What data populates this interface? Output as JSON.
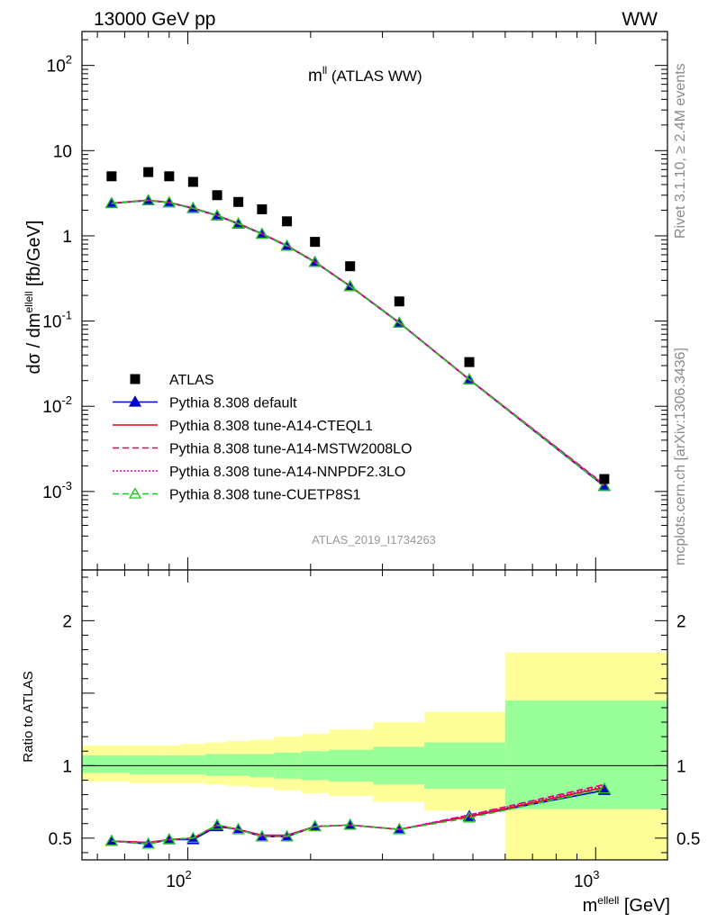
{
  "header": {
    "energy_label": "13000 GeV pp",
    "process_label": "WW",
    "observable_label_main": "m",
    "observable_label_sup": "ll",
    "observable_label_suffix": " (ATLAS WW)",
    "analysis_id": "ATLAS_2019_I1734263",
    "side_rivet": "Rivet 3.1.10, ≥ 2.4M events",
    "side_mcplots": "mcplots.cern.ch [arXiv:1306.3436]"
  },
  "chart_data": [
    {
      "type": "scatter",
      "panel": "main",
      "ylabel_main": "dσ / dm",
      "ylabel_sup": "ellell",
      "ylabel_unit": " [fb/GeV]",
      "xscale": "log",
      "yscale": "log",
      "xlim": [
        55,
        1500
      ],
      "ylim": [
        0.00012,
        250
      ],
      "x_tick_labels": [
        "10^2",
        "10^3"
      ],
      "y_tick_labels": [
        "10^2",
        "10",
        "1",
        "10^-1",
        "10^-2",
        "10^-3"
      ],
      "legend_position": "bottom-left",
      "x": [
        65,
        80,
        90,
        103,
        118,
        133,
        152,
        175,
        205,
        250,
        330,
        490,
        1050
      ],
      "series": [
        {
          "name": "ATLAS",
          "color": "#000000",
          "marker": "square",
          "values": [
            5.0,
            5.6,
            5.0,
            4.3,
            3.0,
            2.5,
            2.05,
            1.48,
            0.85,
            0.44,
            0.17,
            0.033,
            0.0014
          ]
        },
        {
          "name": "Pythia 8.308 default",
          "color": "#0000cc",
          "marker": "triangle-filled",
          "line": "solid",
          "values": [
            2.4,
            2.6,
            2.45,
            2.1,
            1.72,
            1.38,
            1.05,
            0.76,
            0.49,
            0.255,
            0.095,
            0.0205,
            0.00115
          ]
        },
        {
          "name": "Pythia 8.308 tune-A14-CTEQL1",
          "color": "#e8001c",
          "marker": "none",
          "line": "solid",
          "values": [
            2.42,
            2.62,
            2.47,
            2.12,
            1.74,
            1.4,
            1.06,
            0.77,
            0.495,
            0.258,
            0.096,
            0.0207,
            0.00118
          ]
        },
        {
          "name": "Pythia 8.308 tune-A14-MSTW2008LO",
          "color": "#e8005a",
          "marker": "none",
          "line": "dashed",
          "values": [
            2.42,
            2.62,
            2.47,
            2.12,
            1.74,
            1.4,
            1.06,
            0.77,
            0.495,
            0.258,
            0.096,
            0.0207,
            0.00121
          ]
        },
        {
          "name": "Pythia 8.308 tune-A14-NNPDF2.3LO",
          "color": "#e000c8",
          "marker": "none",
          "line": "dotted",
          "values": [
            2.42,
            2.62,
            2.47,
            2.12,
            1.74,
            1.4,
            1.06,
            0.77,
            0.495,
            0.258,
            0.096,
            0.0207,
            0.0012
          ]
        },
        {
          "name": "Pythia 8.308 tune-CUETP8S1",
          "color": "#22c422",
          "marker": "triangle-open",
          "line": "dashed",
          "values": [
            2.41,
            2.6,
            2.46,
            2.11,
            1.73,
            1.39,
            1.05,
            0.76,
            0.49,
            0.255,
            0.095,
            0.0205,
            0.00116
          ]
        }
      ]
    },
    {
      "type": "line",
      "panel": "ratio",
      "ylabel": "Ratio to ATLAS",
      "xlabel_main": "m",
      "xlabel_sup": "ellell",
      "xlabel_unit": " [GeV]",
      "xscale": "log",
      "ylim": [
        0.35,
        2.35
      ],
      "y_tick_labels": [
        "0.5",
        "1",
        "2"
      ],
      "bin_edges": [
        55,
        72,
        85,
        96,
        110,
        125,
        142,
        163,
        190,
        222,
        285,
        380,
        600,
        1500
      ],
      "band_inner": [
        [
          0.95,
          1.07
        ],
        [
          0.94,
          1.07
        ],
        [
          0.94,
          1.07
        ],
        [
          0.94,
          1.07
        ],
        [
          0.93,
          1.08
        ],
        [
          0.93,
          1.08
        ],
        [
          0.92,
          1.08
        ],
        [
          0.91,
          1.09
        ],
        [
          0.9,
          1.1
        ],
        [
          0.89,
          1.11
        ],
        [
          0.87,
          1.13
        ],
        [
          0.84,
          1.16
        ],
        [
          0.7,
          1.45
        ]
      ],
      "band_outer": [
        [
          0.89,
          1.14
        ],
        [
          0.88,
          1.14
        ],
        [
          0.88,
          1.14
        ],
        [
          0.88,
          1.15
        ],
        [
          0.87,
          1.16
        ],
        [
          0.86,
          1.17
        ],
        [
          0.85,
          1.18
        ],
        [
          0.83,
          1.2
        ],
        [
          0.81,
          1.22
        ],
        [
          0.79,
          1.25
        ],
        [
          0.75,
          1.3
        ],
        [
          0.69,
          1.37
        ],
        [
          0.35,
          1.78
        ]
      ],
      "x": [
        65,
        80,
        90,
        103,
        118,
        133,
        152,
        175,
        205,
        250,
        330,
        490,
        1050
      ],
      "series": [
        {
          "name": "Pythia 8.308 default",
          "color": "#0000cc",
          "marker": "triangle-filled",
          "line": "solid",
          "values": [
            0.48,
            0.46,
            0.49,
            0.49,
            0.58,
            0.56,
            0.51,
            0.51,
            0.58,
            0.59,
            0.56,
            0.65,
            0.83
          ]
        },
        {
          "name": "Pythia 8.308 tune-A14-CTEQL1",
          "color": "#e8001c",
          "marker": "none",
          "line": "solid",
          "values": [
            0.48,
            0.47,
            0.49,
            0.5,
            0.59,
            0.56,
            0.52,
            0.52,
            0.58,
            0.59,
            0.56,
            0.65,
            0.85
          ]
        },
        {
          "name": "Pythia 8.308 tune-A14-MSTW2008LO",
          "color": "#e8005a",
          "marker": "none",
          "line": "dashed",
          "values": [
            0.48,
            0.47,
            0.49,
            0.5,
            0.59,
            0.56,
            0.52,
            0.52,
            0.58,
            0.59,
            0.56,
            0.66,
            0.87
          ]
        },
        {
          "name": "Pythia 8.308 tune-A14-NNPDF2.3LO",
          "color": "#e000c8",
          "marker": "none",
          "line": "dotted",
          "values": [
            0.48,
            0.47,
            0.49,
            0.5,
            0.59,
            0.56,
            0.52,
            0.52,
            0.58,
            0.59,
            0.56,
            0.66,
            0.86
          ]
        },
        {
          "name": "Pythia 8.308 tune-CUETP8S1",
          "color": "#22c422",
          "marker": "triangle-open",
          "line": "dashed",
          "values": [
            0.48,
            0.46,
            0.49,
            0.5,
            0.59,
            0.56,
            0.51,
            0.51,
            0.58,
            0.59,
            0.56,
            0.64,
            0.84
          ]
        }
      ],
      "band_inner_color": "#99ff99",
      "band_outer_color": "#ffff99"
    }
  ]
}
